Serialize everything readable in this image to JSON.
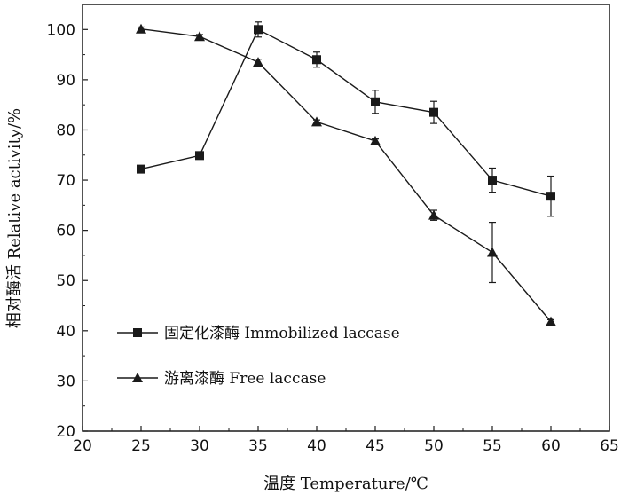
{
  "chart_data": {
    "type": "line",
    "xlabel": "温度 Temperature/℃",
    "ylabel": "相对酶活 Relative activity/%",
    "xlim": [
      20,
      65
    ],
    "ylim": [
      20,
      105
    ],
    "x_ticks": [
      "20",
      "25",
      "30",
      "35",
      "40",
      "45",
      "50",
      "55",
      "60",
      "65"
    ],
    "y_ticks": [
      "20",
      "30",
      "40",
      "50",
      "60",
      "70",
      "80",
      "90",
      "100"
    ],
    "grid": false,
    "legend_position": "bottom-left",
    "x": [
      25,
      30,
      35,
      40,
      45,
      50,
      55,
      60
    ],
    "series": [
      {
        "name": "固定化漆酶 Immobilized laccase",
        "marker": "square",
        "values": [
          72.2,
          74.9,
          100.0,
          94.0,
          85.6,
          83.5,
          70.0,
          66.8
        ],
        "errors": [
          0.4,
          0.5,
          1.5,
          1.5,
          2.3,
          2.2,
          2.4,
          4.0
        ]
      },
      {
        "name": "游离漆酶 Free laccase",
        "marker": "triangle",
        "values": [
          100.1,
          98.6,
          93.5,
          81.6,
          77.8,
          63.0,
          55.6,
          41.8
        ],
        "errors": [
          0.4,
          0.4,
          0.6,
          0.4,
          0.4,
          1.0,
          6.0,
          0.4
        ]
      }
    ],
    "colors": {
      "line": "#1a1a1a",
      "axis": "#1a1a1a"
    }
  }
}
